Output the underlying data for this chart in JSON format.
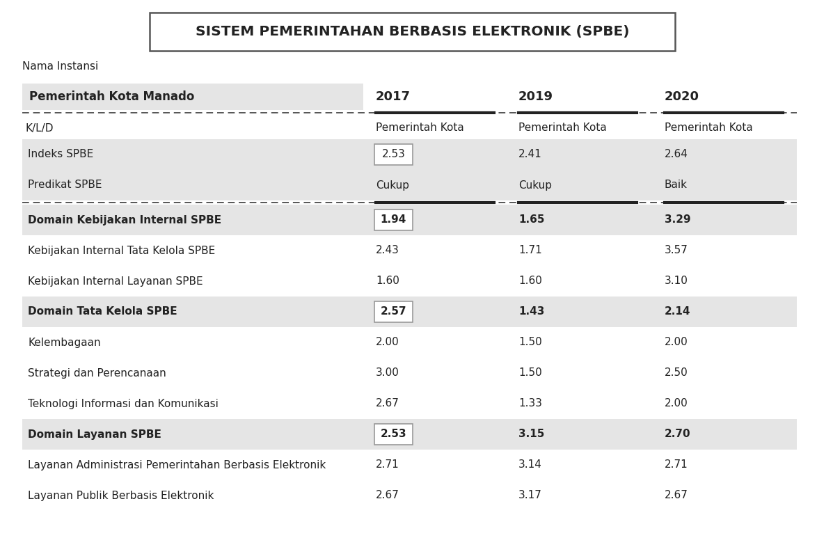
{
  "title": "SISTEM PEMERINTAHAN BERBASIS ELEKTRONIK (SPBE)",
  "label_nama_instansi": "Nama Instansi",
  "col0_header": "Pemerintah Kota Manado",
  "col_years": [
    "2017",
    "2019",
    "2020"
  ],
  "col_subheader": "K/L/D",
  "col_subheader_vals": [
    "Pemerintah Kota",
    "Pemerintah Kota",
    "Pemerintah Kota"
  ],
  "rows": [
    {
      "label": "Indeks SPBE",
      "vals": [
        "2.53",
        "2.41",
        "2.64"
      ],
      "bold": false,
      "shaded": true,
      "boxed": true
    },
    {
      "label": "Predikat SPBE",
      "vals": [
        "Cukup",
        "Cukup",
        "Baik"
      ],
      "bold": false,
      "shaded": true,
      "boxed": false
    },
    {
      "label": "Domain Kebijakan Internal SPBE",
      "vals": [
        "1.94",
        "1.65",
        "3.29"
      ],
      "bold": true,
      "shaded": true,
      "boxed": true
    },
    {
      "label": "Kebijakan Internal Tata Kelola SPBE",
      "vals": [
        "2.43",
        "1.71",
        "3.57"
      ],
      "bold": false,
      "shaded": false,
      "boxed": false
    },
    {
      "label": "Kebijakan Internal Layanan SPBE",
      "vals": [
        "1.60",
        "1.60",
        "3.10"
      ],
      "bold": false,
      "shaded": false,
      "boxed": false
    },
    {
      "label": "Domain Tata Kelola SPBE",
      "vals": [
        "2.57",
        "1.43",
        "2.14"
      ],
      "bold": true,
      "shaded": true,
      "boxed": true
    },
    {
      "label": "Kelembagaan",
      "vals": [
        "2.00",
        "1.50",
        "2.00"
      ],
      "bold": false,
      "shaded": false,
      "boxed": false
    },
    {
      "label": "Strategi dan Perencanaan",
      "vals": [
        "3.00",
        "1.50",
        "2.50"
      ],
      "bold": false,
      "shaded": false,
      "boxed": false
    },
    {
      "label": "Teknologi Informasi dan Komunikasi",
      "vals": [
        "2.67",
        "1.33",
        "2.00"
      ],
      "bold": false,
      "shaded": false,
      "boxed": false
    },
    {
      "label": "Domain Layanan SPBE",
      "vals": [
        "2.53",
        "3.15",
        "2.70"
      ],
      "bold": true,
      "shaded": true,
      "boxed": true
    },
    {
      "label": "Layanan Administrasi Pemerintahan Berbasis Elektronik",
      "vals": [
        "2.71",
        "3.14",
        "2.71"
      ],
      "bold": false,
      "shaded": false,
      "boxed": false
    },
    {
      "label": "Layanan Publik Berbasis Elektronik",
      "vals": [
        "2.67",
        "3.17",
        "2.67"
      ],
      "bold": false,
      "shaded": false,
      "boxed": false
    }
  ],
  "separator_after": [
    1
  ],
  "bg_color": "#ffffff",
  "shaded_color": "#e5e5e5",
  "title_border_color": "#555555",
  "dashed_line_color": "#555555",
  "solid_line_color": "#222222",
  "text_color": "#222222",
  "box_border_color": "#999999",
  "fig_w": 11.74,
  "fig_h": 7.96,
  "dpi": 100
}
